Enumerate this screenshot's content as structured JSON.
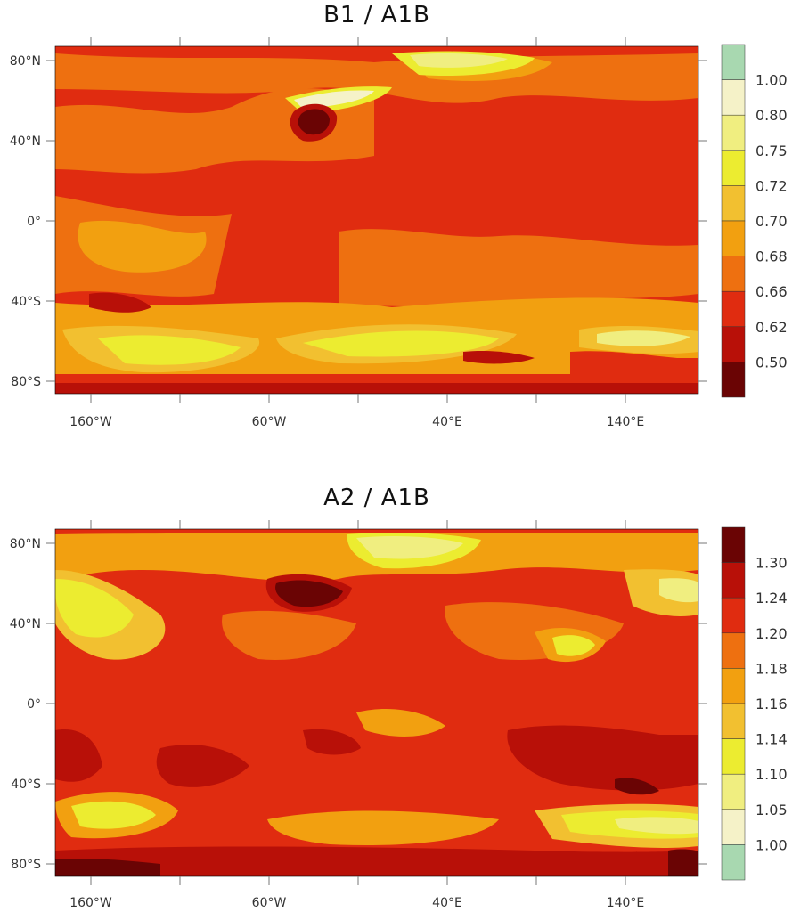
{
  "panels": [
    {
      "title": "B1 / A1B",
      "colorbar": {
        "levels": [
          "1.00",
          "0.80",
          "0.75",
          "0.72",
          "0.70",
          "0.68",
          "0.66",
          "0.62",
          "0.50"
        ],
        "colors": [
          "#a8d8b0",
          "#f5f2c8",
          "#f0ee80",
          "#ecec30",
          "#f2c030",
          "#f2a010",
          "#ee7010",
          "#e02c10",
          "#b81008",
          "#6a0404"
        ]
      }
    },
    {
      "title": "A2 / A1B",
      "colorbar": {
        "levels": [
          "1.30",
          "1.24",
          "1.20",
          "1.18",
          "1.16",
          "1.14",
          "1.10",
          "1.05",
          "1.00"
        ],
        "colors": [
          "#6a0404",
          "#b81008",
          "#e02c10",
          "#ee7010",
          "#f2a010",
          "#f2c030",
          "#ecec30",
          "#f0ee80",
          "#f5f2c8",
          "#a8d8b0"
        ]
      }
    }
  ],
  "axes": {
    "lat_labels": [
      "80°N",
      "40°N",
      "0°",
      "40°S",
      "80°S"
    ],
    "lon_labels": [
      "160°W",
      "60°W",
      "40°E",
      "140°E"
    ]
  }
}
